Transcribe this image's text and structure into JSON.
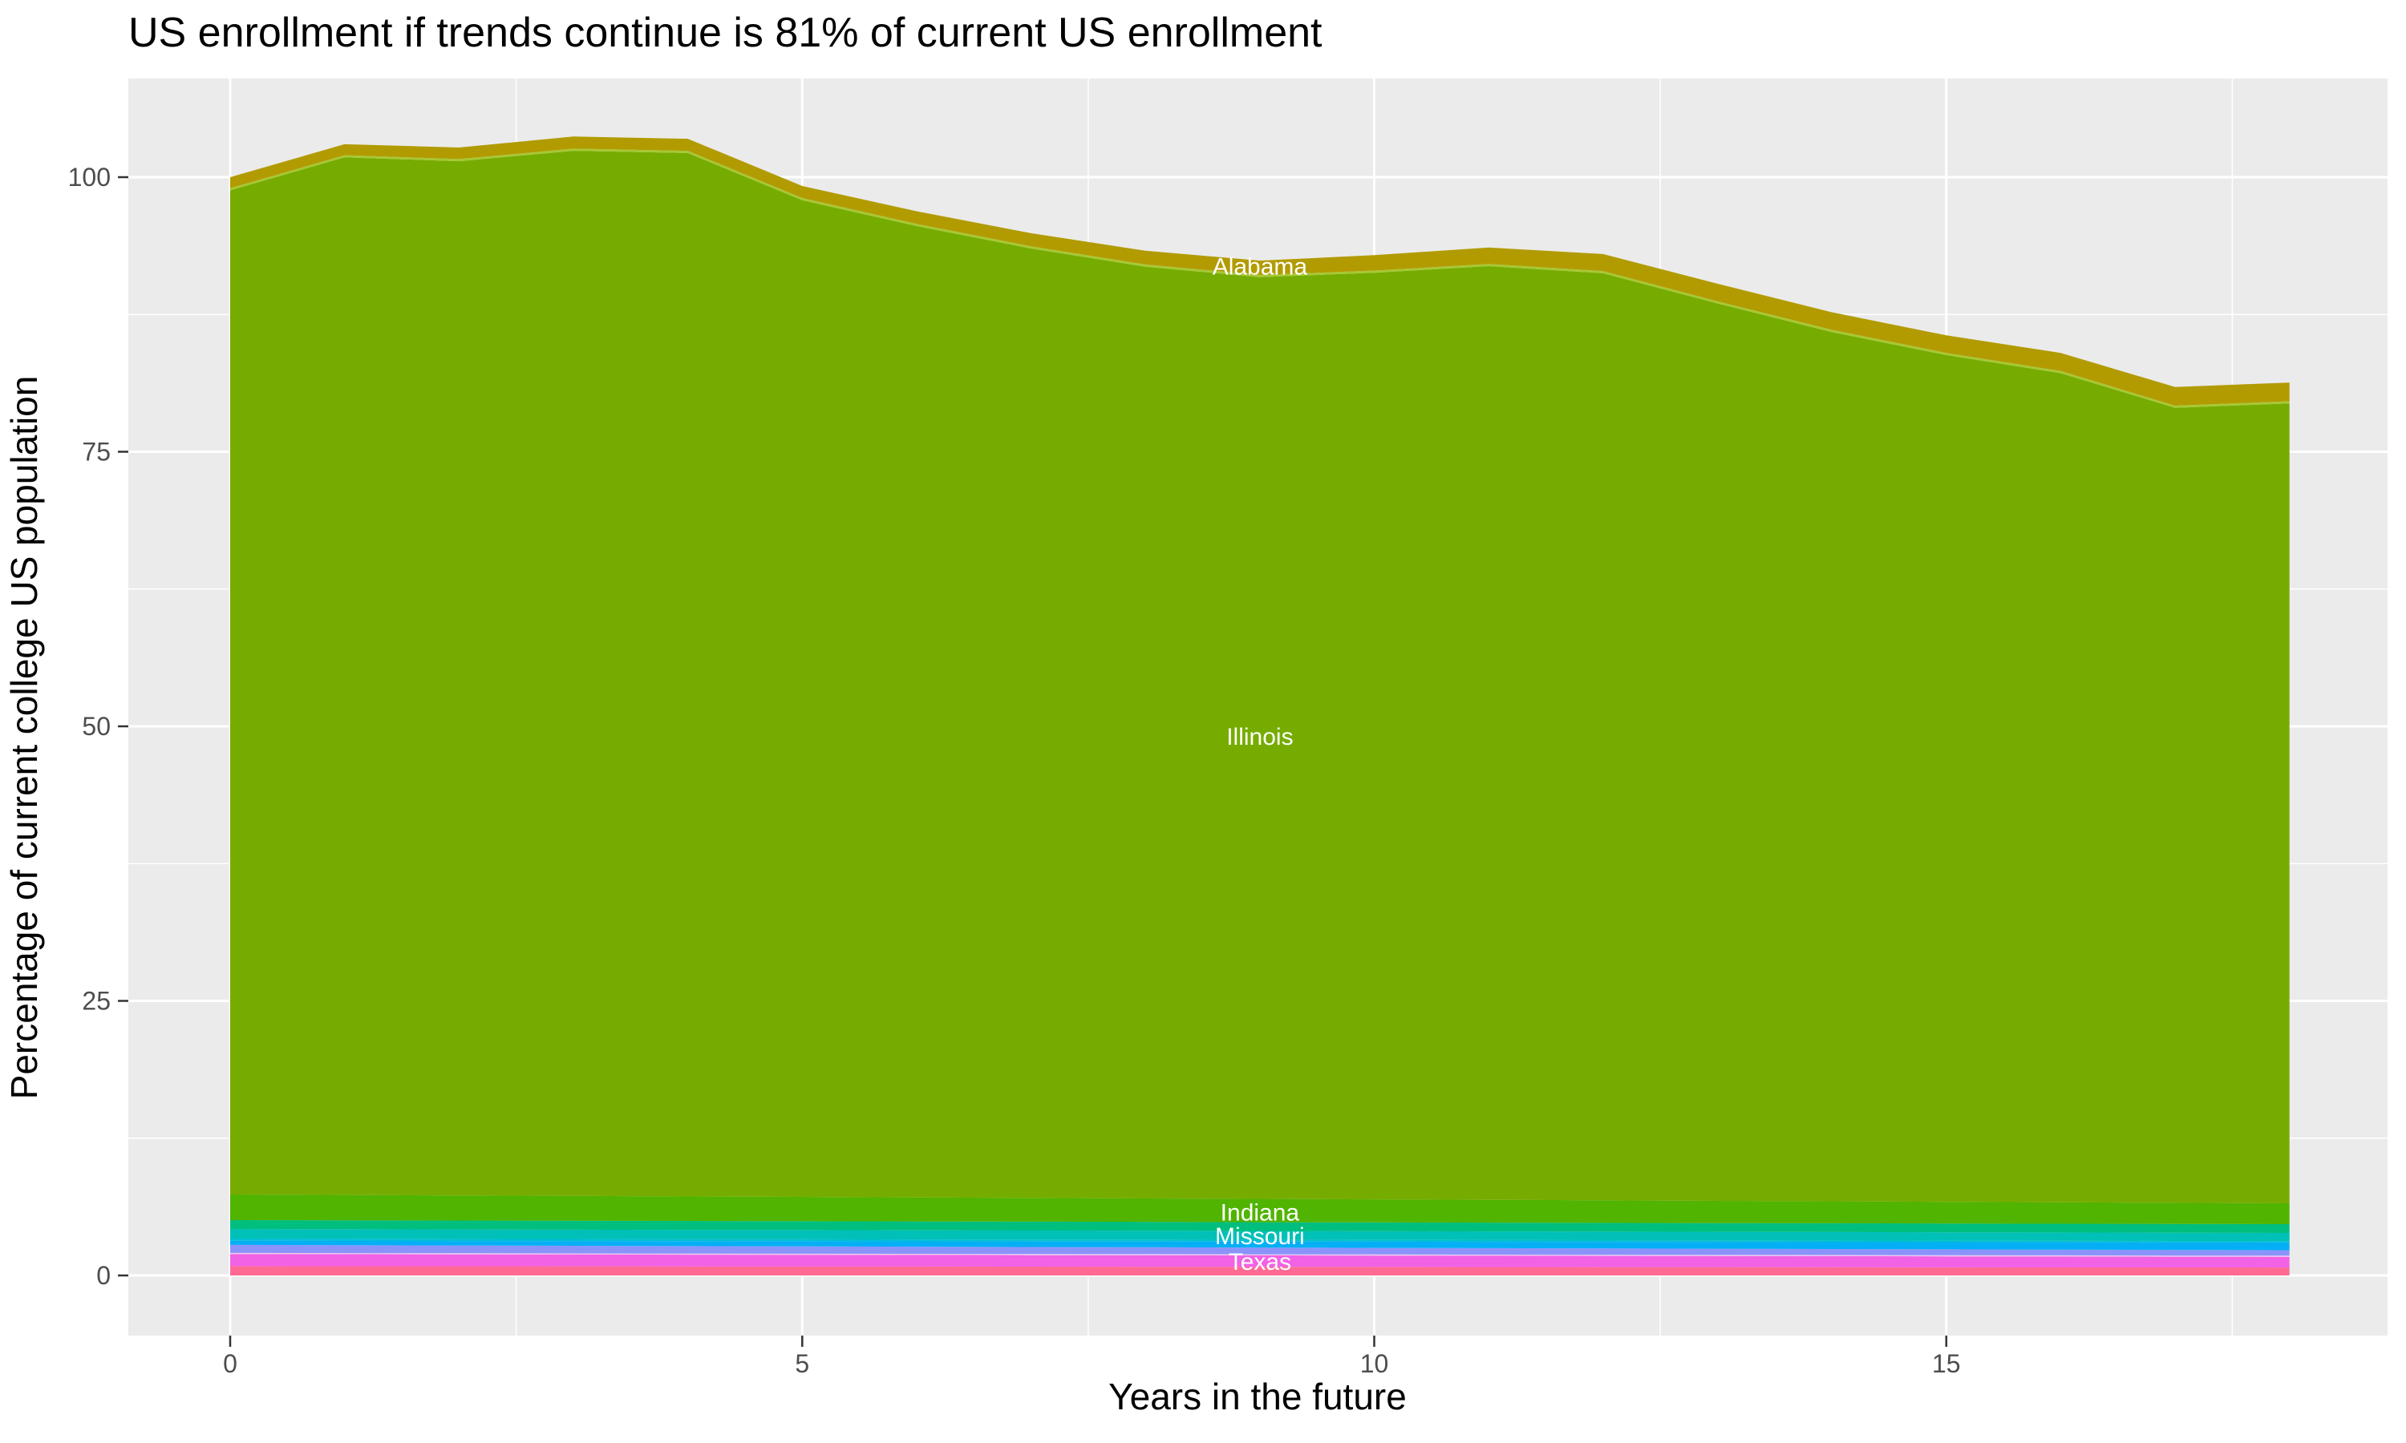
{
  "chart_data": {
    "type": "area",
    "stacked": true,
    "title": "US enrollment if trends continue is 81% of current US enrollment",
    "xlabel": "Years in the future",
    "ylabel": "Percentage of current college US population",
    "x": [
      0,
      1,
      2,
      3,
      4,
      5,
      6,
      7,
      8,
      9,
      10,
      11,
      12,
      13,
      14,
      15,
      16,
      17,
      18
    ],
    "x_range": [
      0,
      18
    ],
    "y_range": [
      0,
      103.7
    ],
    "x_ticks": [
      0,
      5,
      10,
      15
    ],
    "y_ticks": [
      0,
      25,
      50,
      75,
      100
    ],
    "x_minor_ticks": [
      2.5,
      7.5,
      12.5,
      17.5
    ],
    "y_minor_ticks": [
      12.5,
      37.5,
      62.5,
      87.5
    ],
    "grid": true,
    "legend": "none",
    "colors": {
      "panel_background": "#EBEBEB",
      "grid_line": "#FFFFFF",
      "tick_mark": "#333333",
      "tick_label": "#4D4D4D",
      "title_text": "#000000",
      "state_label_text": "#FFFFFF"
    },
    "series": [
      {
        "name": "pink-band",
        "color": "#FF6A94",
        "top": [
          0.85,
          0.84,
          0.84,
          0.83,
          0.82,
          0.81,
          0.81,
          0.8,
          0.79,
          0.79,
          0.78,
          0.77,
          0.76,
          0.76,
          0.75,
          0.74,
          0.73,
          0.73,
          0.72
        ]
      },
      {
        "name": "texas",
        "color": "#F162E5",
        "top": [
          1.95,
          1.94,
          1.92,
          1.91,
          1.89,
          1.88,
          1.87,
          1.85,
          1.84,
          1.83,
          1.81,
          1.8,
          1.78,
          1.77,
          1.76,
          1.74,
          1.73,
          1.71,
          1.7
        ]
      },
      {
        "name": "pale-band",
        "color": "#EFC9F0",
        "top": [
          2.05,
          2.04,
          2.02,
          2.01,
          1.99,
          1.98,
          1.97,
          1.95,
          1.94,
          1.93,
          1.91,
          1.9,
          1.88,
          1.87,
          1.86,
          1.84,
          1.83,
          1.81,
          1.8
        ]
      },
      {
        "name": "periwinkle-band",
        "color": "#8B93FB",
        "top": [
          2.78,
          2.75,
          2.73,
          2.7,
          2.67,
          2.65,
          2.62,
          2.59,
          2.57,
          2.54,
          2.51,
          2.49,
          2.46,
          2.43,
          2.41,
          2.38,
          2.35,
          2.33,
          2.3
        ]
      },
      {
        "name": "blue-band",
        "color": "#05AFF5",
        "top": [
          3.15,
          3.14,
          3.13,
          3.13,
          3.12,
          3.11,
          3.1,
          3.09,
          3.08,
          3.08,
          3.07,
          3.06,
          3.05,
          3.04,
          3.03,
          3.03,
          3.02,
          3.01,
          3.0
        ]
      },
      {
        "name": "cyan-band",
        "color": "#00BFD5",
        "top": [
          3.36,
          3.35,
          3.33,
          3.32,
          3.31,
          3.3,
          3.28,
          3.27,
          3.26,
          3.24,
          3.23,
          3.22,
          3.21,
          3.19,
          3.18,
          3.17,
          3.15,
          3.14,
          3.13
        ]
      },
      {
        "name": "missouri",
        "color": "#00C0B8",
        "top": [
          4.23,
          4.21,
          4.19,
          4.17,
          4.15,
          4.13,
          4.11,
          4.09,
          4.07,
          4.05,
          4.03,
          4.01,
          3.99,
          3.97,
          3.95,
          3.93,
          3.91,
          3.89,
          3.87
        ]
      },
      {
        "name": "emerald-band",
        "color": "#00BE7E",
        "top": [
          5.04,
          5.02,
          5.0,
          4.98,
          4.96,
          4.94,
          4.92,
          4.9,
          4.88,
          4.85,
          4.83,
          4.81,
          4.79,
          4.77,
          4.75,
          4.73,
          4.71,
          4.69,
          4.67
        ]
      },
      {
        "name": "indiana",
        "color": "#50B400",
        "top": [
          7.37,
          7.33,
          7.28,
          7.24,
          7.19,
          7.15,
          7.1,
          7.06,
          7.01,
          6.97,
          6.93,
          6.88,
          6.84,
          6.79,
          6.75,
          6.7,
          6.66,
          6.61,
          6.57
        ]
      },
      {
        "name": "illinois",
        "color": "#76AC00",
        "top": [
          98.8,
          101.8,
          101.45,
          102.4,
          102.2,
          97.9,
          95.55,
          93.5,
          91.85,
          90.9,
          91.3,
          91.9,
          91.25,
          88.5,
          85.9,
          83.8,
          82.15,
          79.0,
          79.4
        ]
      },
      {
        "name": "lightgreen-band",
        "color": "#A6C832",
        "top": [
          99.0,
          102.0,
          101.65,
          102.6,
          102.4,
          98.1,
          95.75,
          93.7,
          92.05,
          91.1,
          91.5,
          92.1,
          91.45,
          88.7,
          86.1,
          84.0,
          82.35,
          79.2,
          79.6
        ]
      },
      {
        "name": "alabama",
        "color": "#B29B00",
        "top": [
          100.0,
          103.0,
          102.7,
          103.7,
          103.5,
          99.2,
          96.9,
          94.9,
          93.3,
          92.4,
          92.9,
          93.6,
          93.0,
          90.3,
          87.7,
          85.6,
          84.0,
          80.9,
          81.3
        ]
      }
    ],
    "state_labels": [
      {
        "text": "Alabama",
        "x": 9,
        "y": 91.9
      },
      {
        "text": "Illinois",
        "x": 9,
        "y": 49.1
      },
      {
        "text": "Indiana",
        "x": 9,
        "y": 5.75
      },
      {
        "text": "Missouri",
        "x": 9,
        "y": 3.62
      },
      {
        "text": "Texas",
        "x": 9,
        "y": 1.28
      }
    ]
  }
}
